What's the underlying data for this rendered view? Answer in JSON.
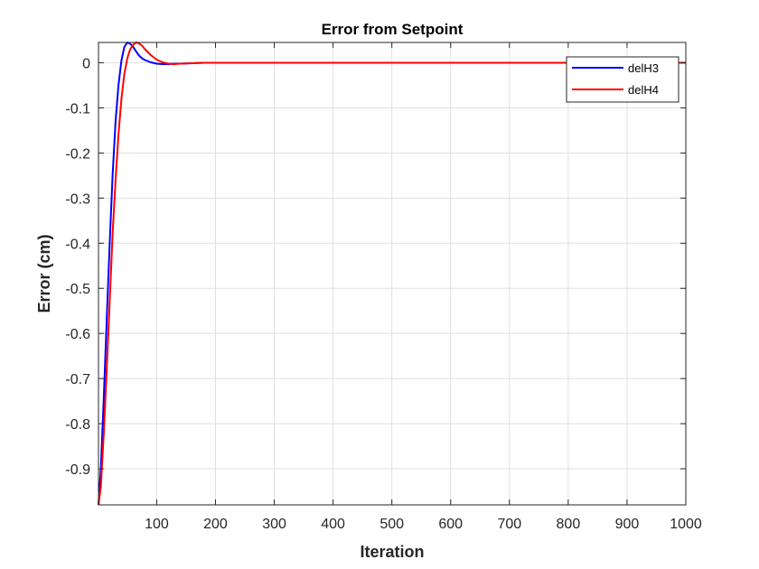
{
  "chart_data": {
    "type": "line",
    "title": "Error from Setpoint",
    "xlabel": "Iteration",
    "ylabel": "Error (cm)",
    "xlim": [
      1,
      1000
    ],
    "ylim": [
      -0.98,
      0.045
    ],
    "xticks": [
      100,
      200,
      300,
      400,
      500,
      600,
      700,
      800,
      900,
      1000
    ],
    "yticks": [
      0,
      -0.1,
      -0.2,
      -0.3,
      -0.4,
      -0.5,
      -0.6,
      -0.7,
      -0.8,
      -0.9
    ],
    "xtick_labels": [
      "100",
      "200",
      "300",
      "400",
      "500",
      "600",
      "700",
      "800",
      "900",
      "1000"
    ],
    "ytick_labels": [
      "0",
      "-0.1",
      "-0.2",
      "-0.3",
      "-0.4",
      "-0.5",
      "-0.6",
      "-0.7",
      "-0.8",
      "-0.9"
    ],
    "grid": true,
    "legend_position": "top-right",
    "series": [
      {
        "name": "delH3",
        "color": "#0000ff",
        "x": [
          1,
          5,
          10,
          15,
          20,
          25,
          30,
          35,
          40,
          45,
          50,
          55,
          60,
          65,
          70,
          75,
          80,
          90,
          100,
          110,
          120,
          130,
          140,
          160,
          180,
          200,
          300,
          400,
          500,
          600,
          700,
          800,
          900,
          1000
        ],
        "y": [
          -0.98,
          -0.9,
          -0.74,
          -0.57,
          -0.4,
          -0.25,
          -0.13,
          -0.05,
          0.005,
          0.035,
          0.045,
          0.042,
          0.035,
          0.025,
          0.016,
          0.01,
          0.006,
          0.001,
          -0.002,
          -0.003,
          -0.003,
          -0.002,
          -0.002,
          -0.001,
          0,
          0,
          0,
          0,
          0,
          0,
          0,
          0,
          0,
          0
        ]
      },
      {
        "name": "delH4",
        "color": "#ff0000",
        "x": [
          1,
          5,
          10,
          15,
          20,
          25,
          30,
          35,
          40,
          45,
          50,
          55,
          60,
          65,
          70,
          75,
          80,
          90,
          100,
          110,
          120,
          130,
          140,
          160,
          180,
          200,
          300,
          400,
          500,
          600,
          700,
          800,
          900,
          1000
        ],
        "y": [
          -0.98,
          -0.94,
          -0.82,
          -0.68,
          -0.53,
          -0.38,
          -0.26,
          -0.16,
          -0.08,
          -0.025,
          0.01,
          0.03,
          0.04,
          0.045,
          0.043,
          0.038,
          0.03,
          0.017,
          0.007,
          0.001,
          -0.002,
          -0.003,
          -0.002,
          -0.001,
          0,
          0,
          0,
          0,
          0,
          0,
          0,
          0,
          0,
          0
        ]
      }
    ]
  }
}
